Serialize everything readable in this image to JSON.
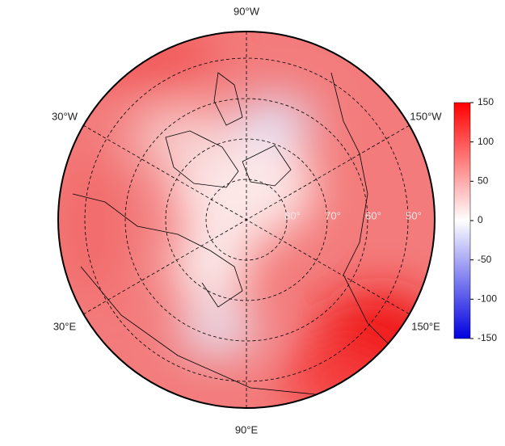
{
  "map": {
    "longitude_labels": [
      "90°W",
      "30°W",
      "150°W",
      "30°E",
      "150°E",
      "90°E"
    ],
    "latitude_labels": [
      "80°",
      "70°",
      "60°",
      "50°"
    ]
  },
  "colorbar": {
    "lim": [
      -150,
      150
    ],
    "ticks": [
      150,
      100,
      50,
      0,
      -50,
      -100,
      -150
    ]
  }
}
